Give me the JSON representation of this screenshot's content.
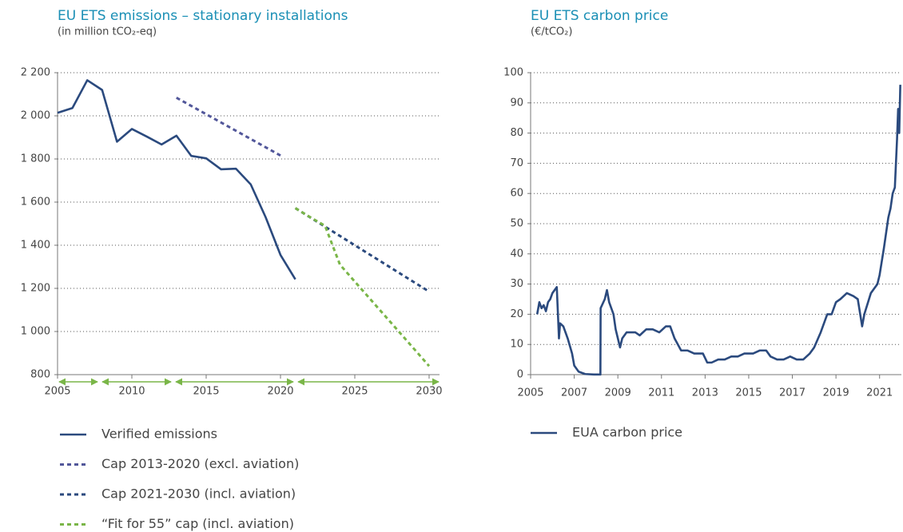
{
  "chart_data": [
    {
      "type": "line",
      "title": "EU ETS emissions – stationary installations",
      "subtitle": "(in million tCO₂-eq)",
      "xlim": [
        2005,
        2030.7
      ],
      "xticks": [
        2005,
        2010,
        2015,
        2020,
        2025,
        2030
      ],
      "ylim": [
        800,
        2200
      ],
      "yticks": [
        800,
        {
          "value": 1000,
          "label": "1 000"
        },
        {
          "value": 1200,
          "label": "1 200"
        },
        {
          "value": 1400,
          "label": "1 400"
        },
        {
          "value": 1600,
          "label": "1 600"
        },
        {
          "value": 1800,
          "label": "1 800"
        },
        {
          "value": 2000,
          "label": "2 000"
        },
        {
          "value": 2200,
          "label": "2 200"
        }
      ],
      "grid": true,
      "series": [
        {
          "name": "Verified emissions",
          "color": "#2b4a7e",
          "dashed": false,
          "x": [
            2005,
            2006,
            2007,
            2008,
            2009,
            2010,
            2011,
            2012,
            2013,
            2014,
            2015,
            2016,
            2017,
            2018,
            2019,
            2020,
            2021
          ],
          "values": [
            2014,
            2036,
            2165,
            2120,
            1880,
            1939,
            1904,
            1867,
            1908,
            1814,
            1803,
            1752,
            1755,
            1682,
            1530,
            1355,
            1242
          ]
        },
        {
          "name": "Cap 2013-2020 (excl. aviation)",
          "color": "#52579a",
          "dashed": true,
          "x": [
            2013,
            2020
          ],
          "values": [
            2084,
            1816
          ]
        },
        {
          "name": "Cap 2021-2030 (incl. aviation)",
          "color": "#2b4a7e",
          "dashed": true,
          "x": [
            2021,
            2030
          ],
          "values": [
            1572,
            1185
          ]
        },
        {
          "name": "“Fit for 55” cap (incl. aviation)",
          "color": "#7ab648",
          "dashed": true,
          "x": [
            2021,
            2022,
            2023,
            2024,
            2030
          ],
          "values": [
            1572,
            1530,
            1490,
            1310,
            840
          ]
        }
      ]
    },
    {
      "type": "line",
      "title": "EU ETS carbon price",
      "subtitle": "(€/tCO₂)",
      "xlim": [
        2005,
        2022
      ],
      "xticks": [
        2005,
        2007,
        2009,
        2011,
        2013,
        2015,
        2017,
        2019,
        2021
      ],
      "ylim": [
        0,
        100
      ],
      "yticks": [
        0,
        10,
        20,
        30,
        40,
        50,
        60,
        70,
        80,
        90,
        100
      ],
      "grid": true,
      "series": [
        {
          "name": "EUA carbon price",
          "color": "#2b4a7e",
          "dashed": false,
          "x": [
            2005.3,
            2005.4,
            2005.5,
            2005.6,
            2005.7,
            2005.8,
            2005.9,
            2006.0,
            2006.2,
            2006.3,
            2006.35,
            2006.5,
            2006.7,
            2006.9,
            2007.0,
            2007.2,
            2007.5,
            2007.9,
            2008.2,
            2008.21,
            2008.4,
            2008.5,
            2008.6,
            2008.8,
            2008.9,
            2009.1,
            2009.2,
            2009.4,
            2009.6,
            2009.8,
            2010.0,
            2010.3,
            2010.6,
            2010.9,
            2011.2,
            2011.4,
            2011.6,
            2011.9,
            2012.2,
            2012.5,
            2012.9,
            2013.1,
            2013.3,
            2013.6,
            2013.9,
            2014.2,
            2014.5,
            2014.8,
            2015.2,
            2015.5,
            2015.8,
            2016.0,
            2016.3,
            2016.6,
            2016.9,
            2017.2,
            2017.5,
            2017.8,
            2018.0,
            2018.3,
            2018.6,
            2018.8,
            2019.0,
            2019.2,
            2019.5,
            2019.8,
            2020.0,
            2020.2,
            2020.3,
            2020.6,
            2020.9,
            2021.0,
            2021.2,
            2021.4,
            2021.5,
            2021.6,
            2021.7,
            2021.8,
            2021.85,
            2021.9,
            2021.95
          ],
          "values": [
            20,
            24,
            22,
            23,
            21,
            24,
            25,
            27,
            29,
            12,
            17,
            16,
            12,
            7,
            3,
            1,
            0.2,
            0.05,
            0.05,
            22,
            25,
            28,
            24,
            20,
            15,
            9,
            12,
            14,
            14,
            14,
            13,
            15,
            15,
            14,
            16,
            16,
            12,
            8,
            8,
            7,
            7,
            4,
            4,
            5,
            5,
            6,
            6,
            7,
            7,
            8,
            8,
            6,
            5,
            5,
            6,
            5,
            5,
            7,
            9,
            14,
            20,
            20,
            24,
            25,
            27,
            26,
            25,
            16,
            20,
            27,
            30,
            33,
            42,
            52,
            55,
            60,
            62,
            78,
            88,
            80,
            96
          ]
        }
      ]
    }
  ]
}
